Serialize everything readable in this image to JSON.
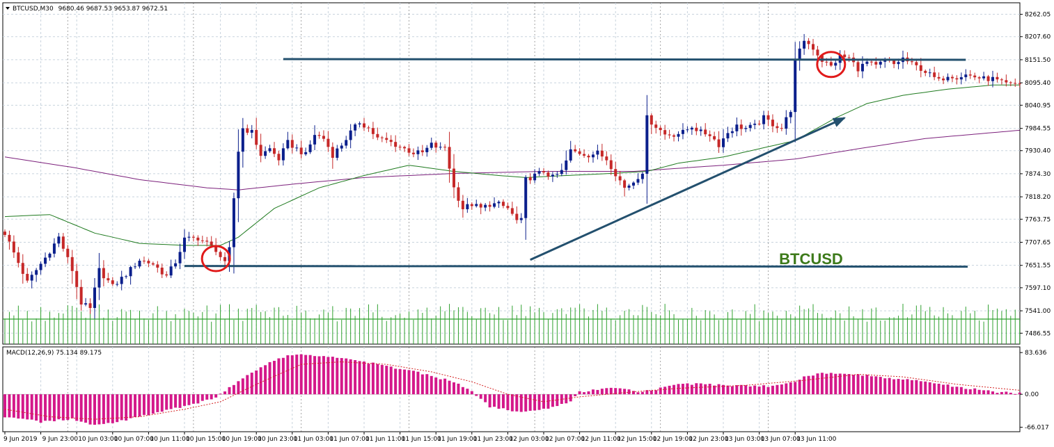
{
  "colors": {
    "background": "#ffffff",
    "grid": "#c8d3dd",
    "bull": "#0b1f8c",
    "bear": "#c62828",
    "ma_fast": "#1e7a1e",
    "ma_slow": "#7b1f7b",
    "volume": "#2fa02f",
    "macd_hist": "#d4188a",
    "macd_signal": "#d42020",
    "drawing": "#23506e",
    "circle": "#e11a1a",
    "label": "#3d7a1a"
  },
  "chart_data": [
    {
      "type": "candlestick",
      "title": "BTCUSD,M30",
      "ohlc_header": "9680.46 9687.53 9653.87 9672.51",
      "watermark": "BTCUSD",
      "ylim": [
        7460,
        8290
      ],
      "y_ticks": [
        "8262.05",
        "8207.60",
        "8151.50",
        "8095.40",
        "8040.95",
        "7984.55",
        "7930.40",
        "7874.30",
        "7818.20",
        "7763.75",
        "7707.65",
        "7651.55",
        "7597.10",
        "7541.00",
        "7486.55"
      ],
      "x_tick_labels": [
        "9 Jun 2019",
        "9 Jun 23:00",
        "10 Jun 03:00",
        "10 Jun 07:00",
        "10 Jun 11:00",
        "10 Jun 15:00",
        "10 Jun 19:00",
        "10 Jun 23:00",
        "11 Jun 03:00",
        "11 Jun 07:00",
        "11 Jun 11:00",
        "11 Jun 15:00",
        "11 Jun 19:00",
        "11 Jun 23:00",
        "12 Jun 03:00",
        "12 Jun 07:00",
        "12 Jun 11:00",
        "12 Jun 15:00",
        "12 Jun 19:00",
        "12 Jun 23:00",
        "13 Jun 03:00",
        "13 Jun 07:00",
        "13 Jun 11:00"
      ],
      "price_anchors": [
        [
          0,
          7730
        ],
        [
          5,
          7610
        ],
        [
          9,
          7670
        ],
        [
          12,
          7720
        ],
        [
          15,
          7640
        ],
        [
          17,
          7560
        ],
        [
          19,
          7545
        ],
        [
          21,
          7640
        ],
        [
          24,
          7600
        ],
        [
          27,
          7630
        ],
        [
          30,
          7665
        ],
        [
          33,
          7655
        ],
        [
          36,
          7625
        ],
        [
          38,
          7660
        ],
        [
          40,
          7715
        ],
        [
          43,
          7718
        ],
        [
          45,
          7705
        ],
        [
          47,
          7690
        ],
        [
          49,
          7655
        ],
        [
          50,
          7690
        ],
        [
          51,
          7815
        ],
        [
          52,
          7930
        ],
        [
          53,
          7985
        ],
        [
          55,
          7975
        ],
        [
          57,
          7920
        ],
        [
          59,
          7935
        ],
        [
          61,
          7910
        ],
        [
          63,
          7950
        ],
        [
          65,
          7935
        ],
        [
          67,
          7920
        ],
        [
          69,
          7970
        ],
        [
          71,
          7960
        ],
        [
          73,
          7920
        ],
        [
          75,
          7945
        ],
        [
          77,
          7975
        ],
        [
          79,
          8000
        ],
        [
          81,
          7985
        ],
        [
          83,
          7960
        ],
        [
          85,
          7955
        ],
        [
          87,
          7945
        ],
        [
          89,
          7935
        ],
        [
          91,
          7925
        ],
        [
          93,
          7925
        ],
        [
          95,
          7945
        ],
        [
          97,
          7935
        ],
        [
          98,
          7940
        ],
        [
          100,
          7840
        ],
        [
          102,
          7790
        ],
        [
          104,
          7800
        ],
        [
          106,
          7790
        ],
        [
          108,
          7800
        ],
        [
          110,
          7800
        ],
        [
          112,
          7790
        ],
        [
          114,
          7760
        ],
        [
          115,
          7760
        ],
        [
          116,
          7860
        ],
        [
          118,
          7870
        ],
        [
          120,
          7880
        ],
        [
          122,
          7865
        ],
        [
          124,
          7880
        ],
        [
          126,
          7930
        ],
        [
          128,
          7925
        ],
        [
          130,
          7920
        ],
        [
          132,
          7925
        ],
        [
          134,
          7910
        ],
        [
          136,
          7875
        ],
        [
          138,
          7840
        ],
        [
          140,
          7855
        ],
        [
          142,
          7880
        ],
        [
          143,
          8010
        ],
        [
          145,
          7990
        ],
        [
          147,
          7970
        ],
        [
          149,
          7970
        ],
        [
          151,
          7975
        ],
        [
          153,
          7990
        ],
        [
          155,
          7975
        ],
        [
          157,
          7970
        ],
        [
          159,
          7945
        ],
        [
          161,
          7975
        ],
        [
          163,
          7990
        ],
        [
          165,
          7985
        ],
        [
          167,
          7990
        ],
        [
          169,
          8010
        ],
        [
          171,
          7995
        ],
        [
          173,
          7985
        ],
        [
          175,
          8030
        ],
        [
          176,
          8145
        ],
        [
          178,
          8200
        ],
        [
          180,
          8180
        ],
        [
          182,
          8150
        ],
        [
          184,
          8135
        ],
        [
          186,
          8160
        ],
        [
          188,
          8155
        ],
        [
          190,
          8130
        ],
        [
          192,
          8145
        ],
        [
          194,
          8135
        ],
        [
          196,
          8150
        ],
        [
          198,
          8140
        ],
        [
          200,
          8155
        ],
        [
          202,
          8140
        ],
        [
          204,
          8130
        ],
        [
          206,
          8115
        ],
        [
          208,
          8100
        ],
        [
          210,
          8115
        ],
        [
          212,
          8110
        ],
        [
          214,
          8115
        ],
        [
          216,
          8110
        ],
        [
          218,
          8105
        ],
        [
          220,
          8105
        ],
        [
          222,
          8095
        ],
        [
          224,
          8090
        ],
        [
          226,
          8095
        ]
      ],
      "n_candles": 227,
      "ma_fast_anchors": [
        [
          0,
          7770
        ],
        [
          10,
          7775
        ],
        [
          20,
          7730
        ],
        [
          30,
          7705
        ],
        [
          40,
          7700
        ],
        [
          48,
          7700
        ],
        [
          52,
          7720
        ],
        [
          60,
          7790
        ],
        [
          70,
          7840
        ],
        [
          80,
          7870
        ],
        [
          90,
          7895
        ],
        [
          100,
          7880
        ],
        [
          110,
          7870
        ],
        [
          116,
          7865
        ],
        [
          125,
          7870
        ],
        [
          135,
          7875
        ],
        [
          143,
          7880
        ],
        [
          150,
          7900
        ],
        [
          160,
          7915
        ],
        [
          170,
          7940
        ],
        [
          176,
          7955
        ],
        [
          185,
          8010
        ],
        [
          192,
          8045
        ],
        [
          200,
          8065
        ],
        [
          210,
          8080
        ],
        [
          220,
          8090
        ],
        [
          226,
          8090
        ]
      ],
      "ma_slow_anchors": [
        [
          0,
          7915
        ],
        [
          15,
          7890
        ],
        [
          30,
          7860
        ],
        [
          45,
          7840
        ],
        [
          52,
          7835
        ],
        [
          65,
          7850
        ],
        [
          80,
          7865
        ],
        [
          100,
          7875
        ],
        [
          120,
          7880
        ],
        [
          140,
          7880
        ],
        [
          160,
          7895
        ],
        [
          176,
          7910
        ],
        [
          190,
          7935
        ],
        [
          205,
          7960
        ],
        [
          226,
          7980
        ]
      ],
      "series": [
        {
          "name": "BTCUSD",
          "kind": "candles"
        },
        {
          "kind": "moving_average",
          "color": "#1e7a1e"
        },
        {
          "kind": "moving_average",
          "color": "#7b1f7b"
        },
        {
          "kind": "volume",
          "color": "#2fa02f"
        }
      ],
      "annotations": [
        {
          "kind": "horizontal_line",
          "from_candle": 62,
          "to_candle": 214,
          "price": 8153
        },
        {
          "kind": "horizontal_line",
          "from_candle": 40,
          "to_candle": 270,
          "price": 7650
        },
        {
          "kind": "trend_arrow",
          "from": [
            117,
            7665
          ],
          "to": [
            187,
            8010
          ]
        },
        {
          "kind": "circle",
          "candle": 47,
          "price": 7668
        },
        {
          "kind": "circle",
          "candle": 184,
          "price": 8140
        }
      ]
    },
    {
      "type": "bar",
      "title": "MACD(12,26,9) 75.134 89.175",
      "ylim": [
        -75,
        95
      ],
      "y_ticks": [
        "83.636",
        "0.00",
        "-66.017"
      ],
      "hist_anchors": [
        [
          0,
          -45
        ],
        [
          8,
          -55
        ],
        [
          15,
          -50
        ],
        [
          20,
          -62
        ],
        [
          25,
          -55
        ],
        [
          32,
          -40
        ],
        [
          40,
          -25
        ],
        [
          46,
          -10
        ],
        [
          48,
          0
        ],
        [
          52,
          25
        ],
        [
          57,
          55
        ],
        [
          62,
          75
        ],
        [
          66,
          80
        ],
        [
          72,
          75
        ],
        [
          80,
          65
        ],
        [
          90,
          48
        ],
        [
          100,
          25
        ],
        [
          104,
          5
        ],
        [
          108,
          -25
        ],
        [
          115,
          -35
        ],
        [
          120,
          -30
        ],
        [
          126,
          -15
        ],
        [
          128,
          5
        ],
        [
          135,
          12
        ],
        [
          142,
          5
        ],
        [
          145,
          10
        ],
        [
          150,
          22
        ],
        [
          160,
          18
        ],
        [
          170,
          16
        ],
        [
          175,
          22
        ],
        [
          178,
          35
        ],
        [
          182,
          42
        ],
        [
          190,
          40
        ],
        [
          198,
          32
        ],
        [
          205,
          25
        ],
        [
          212,
          15
        ],
        [
          220,
          5
        ],
        [
          226,
          2
        ]
      ],
      "signal_anchors": [
        [
          0,
          -30
        ],
        [
          10,
          -45
        ],
        [
          20,
          -50
        ],
        [
          30,
          -45
        ],
        [
          40,
          -30
        ],
        [
          48,
          -15
        ],
        [
          56,
          20
        ],
        [
          66,
          60
        ],
        [
          75,
          65
        ],
        [
          85,
          60
        ],
        [
          95,
          45
        ],
        [
          104,
          25
        ],
        [
          112,
          0
        ],
        [
          120,
          -15
        ],
        [
          128,
          -5
        ],
        [
          140,
          5
        ],
        [
          150,
          12
        ],
        [
          165,
          18
        ],
        [
          178,
          28
        ],
        [
          190,
          40
        ],
        [
          200,
          35
        ],
        [
          212,
          20
        ],
        [
          226,
          8
        ]
      ]
    }
  ]
}
